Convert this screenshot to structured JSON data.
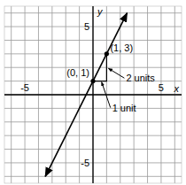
{
  "chart_data": {
    "type": "line",
    "x": [
      -3.5,
      2.5
    ],
    "values": [
      -6,
      6
    ],
    "color": "#000000",
    "xlim": [
      -6.5,
      6.5
    ],
    "ylim": [
      -6.5,
      6.5
    ],
    "xticks": [
      {
        "value": -6,
        "label": null
      },
      -5,
      {
        "value": -4,
        "label": null
      },
      {
        "value": -3,
        "label": null
      },
      {
        "value": -2,
        "label": null
      },
      {
        "value": -1,
        "label": null
      },
      {
        "value": 0,
        "label": null
      },
      {
        "value": 1,
        "label": null
      },
      {
        "value": 2,
        "label": null
      },
      {
        "value": 3,
        "label": null
      },
      {
        "value": 4,
        "label": null
      },
      5,
      {
        "value": 6,
        "label": null
      }
    ],
    "yticks": [
      {
        "value": -6,
        "label": null
      },
      -5,
      {
        "value": -4,
        "label": null
      },
      {
        "value": -3,
        "label": null
      },
      {
        "value": -2,
        "label": null
      },
      {
        "value": -1,
        "label": null
      },
      {
        "value": 0,
        "label": null
      },
      {
        "value": 1,
        "label": null
      },
      {
        "value": 2,
        "label": null
      },
      {
        "value": 3,
        "label": null
      },
      {
        "value": 4,
        "label": null
      },
      5,
      {
        "value": 6,
        "label": null
      }
    ],
    "grid": true,
    "x_label": "x",
    "y_label": "y",
    "points": [
      {
        "x": 0,
        "y": 1,
        "label": "(0, 1)"
      },
      {
        "x": 1,
        "y": 3,
        "label": "(1, 3)"
      }
    ],
    "annotations": [
      {
        "text": "2 units",
        "x": 1,
        "y": 2
      },
      {
        "text": "1 unit",
        "x": 0.5,
        "y": 1
      }
    ]
  }
}
